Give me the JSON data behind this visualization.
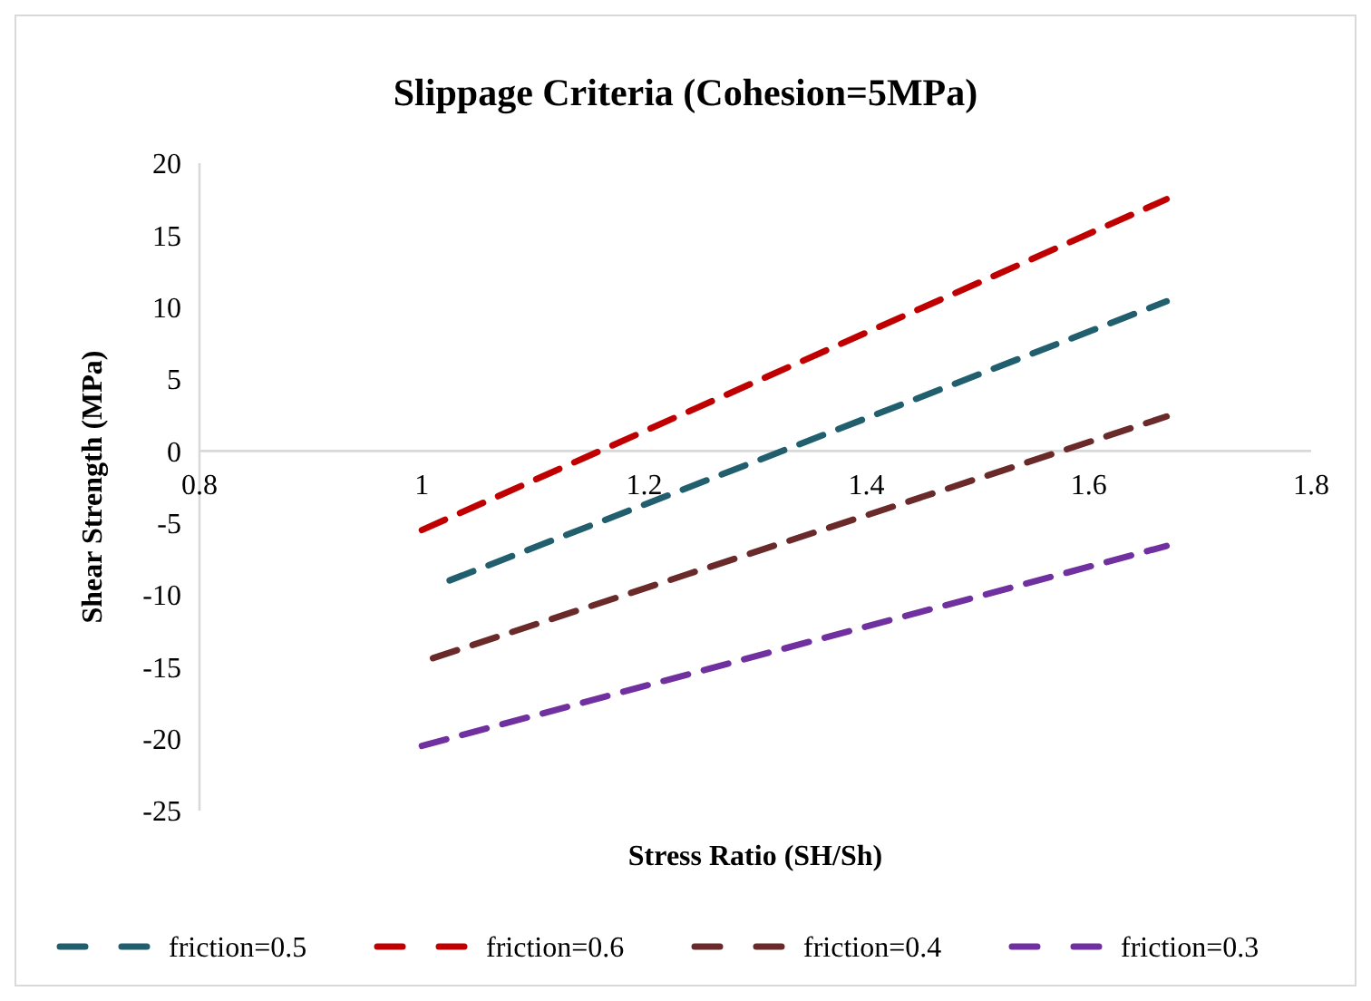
{
  "chart_data": {
    "type": "line",
    "title": "Slippage Criteria (Cohesion=5MPa)",
    "xlabel": "Stress Ratio (SH/Sh)",
    "ylabel": "Shear Strength (MPa)",
    "xlim": [
      0.8,
      1.8
    ],
    "xticks": [
      0.8,
      1,
      1.2,
      1.4,
      1.6,
      1.8
    ],
    "ylim": [
      -25,
      20
    ],
    "yticks": [
      -25,
      -20,
      -15,
      -10,
      -5,
      0,
      5,
      10,
      15,
      20
    ],
    "grid": false,
    "legend": "bottom",
    "line_style": "dashed",
    "series": [
      {
        "name": "friction=0.5",
        "color": "#215f6e",
        "x": [
          1.025,
          1.67
        ],
        "values": [
          -9.0,
          10.4
        ]
      },
      {
        "name": "friction=0.6",
        "color": "#c00000",
        "x": [
          1.0,
          1.67
        ],
        "values": [
          -5.5,
          17.5
        ]
      },
      {
        "name": "friction=0.4",
        "color": "#6b2a2a",
        "x": [
          1.01,
          1.67
        ],
        "values": [
          -14.4,
          2.4
        ]
      },
      {
        "name": "friction=0.3",
        "color": "#7030a0",
        "x": [
          1.0,
          1.67
        ],
        "values": [
          -20.5,
          -6.6
        ]
      }
    ]
  }
}
